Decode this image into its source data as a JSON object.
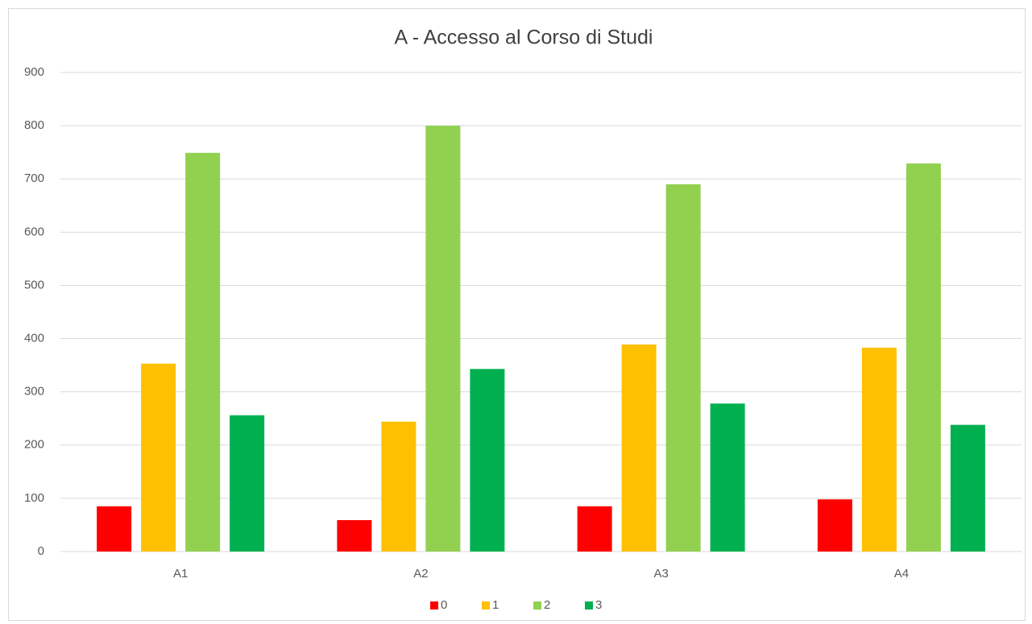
{
  "chart_data": {
    "type": "bar",
    "title": "A - Accesso al Corso di Studi",
    "categories": [
      "A1",
      "A2",
      "A3",
      "A4"
    ],
    "series": [
      {
        "name": "0",
        "color": "#ff0000",
        "values": [
          85,
          59,
          85,
          98
        ]
      },
      {
        "name": "1",
        "color": "#ffc000",
        "values": [
          353,
          244,
          389,
          383
        ]
      },
      {
        "name": "2",
        "color": "#92d050",
        "values": [
          749,
          800,
          690,
          729
        ]
      },
      {
        "name": "3",
        "color": "#00b050",
        "values": [
          256,
          343,
          278,
          238
        ]
      }
    ],
    "ylim": [
      0,
      900
    ],
    "yticks": [
      0,
      100,
      200,
      300,
      400,
      500,
      600,
      700,
      800,
      900
    ],
    "grid": true,
    "legend": "bottom"
  }
}
